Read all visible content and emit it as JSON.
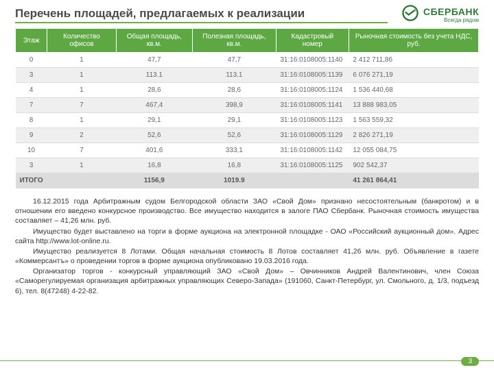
{
  "header": {
    "title": "Перечень площадей, предлагаемых к реализации",
    "logo_name": "СБЕРБАНК",
    "logo_tag": "Всегда рядом"
  },
  "table": {
    "columns": [
      "Этаж",
      "Количество офисов",
      "Общая площадь, кв.м.",
      "Полезная площадь, кв.м.",
      "Кадастровый номер",
      "Рыночная стоимость без учета НДС, руб."
    ],
    "rows": [
      [
        "0",
        "1",
        "47,7",
        "47,7",
        "31:16:0108005:1140",
        "2 412 711,86"
      ],
      [
        "3",
        "1",
        "113.1",
        "113.1",
        "31:16:0108005:1139",
        "6 076 271,19"
      ],
      [
        "4",
        "1",
        "28,6",
        "28,6",
        "31:16:0108005:1124",
        "1 536 440,68"
      ],
      [
        "7",
        "7",
        "467,4",
        "398,9",
        "31:16:0108005:1141",
        "13 888 983,05"
      ],
      [
        "8",
        "1",
        "29,1",
        "29,1",
        "31:16:0108005:1123",
        "1 563 559,32"
      ],
      [
        "9",
        "2",
        "52,6",
        "52,6",
        "31:16:0108005:1129",
        "2 826 271,19"
      ],
      [
        "10",
        "7",
        "401,6",
        "333,1",
        "31:16:0108005:1142",
        "12 055 084,75"
      ],
      [
        "3",
        "1",
        "16,8",
        "16,8",
        "31:16:0108005:1125",
        "902 542,37"
      ]
    ],
    "total": [
      "ИТОГО",
      "",
      "1156,9",
      "1019.9",
      "",
      "41 261 864,41"
    ]
  },
  "paragraphs": [
    "16.12.2015 года Арбитражным судом Белгородской области ЗАО «Свой Дом» признано несостоятельным (банкротом) и в отношении его введено конкурсное производство. Все имущество находится в залоге ПАО Сбербанк. Рыночная стоимость имущества составляет – 41,26 млн. руб.",
    "Имущество будет выставлено на торги в форме аукциона на электронной площадке - ОАО «Российский аукционный дом». Адрес сайта http://www.lot-online.ru.",
    "Имущество реализуется 8 Лотами. Общая начальная стоимость 8 Лотов составляет 41,26 млн. руб. Объявление в газете «Коммерсантъ» о проведении торгов в форме аукциона  опубликовано 19.03.2016 года.",
    "Организатор торгов - конкурсный управляющий ЗАО «Свой Дом» – Овчинников Андрей Валентинович, член Союза «Саморегулируемая организация арбитражных управляющих Северо-Запада» (191060, Санкт-Петербург, ул. Смольного, д. 1/3, подъезд 6), тел. 8(47248) 4-22-82."
  ],
  "page_number": "3",
  "colors": {
    "brand_green": "#5ea843",
    "underline": "#70ad47",
    "text_grey": "#666666"
  }
}
